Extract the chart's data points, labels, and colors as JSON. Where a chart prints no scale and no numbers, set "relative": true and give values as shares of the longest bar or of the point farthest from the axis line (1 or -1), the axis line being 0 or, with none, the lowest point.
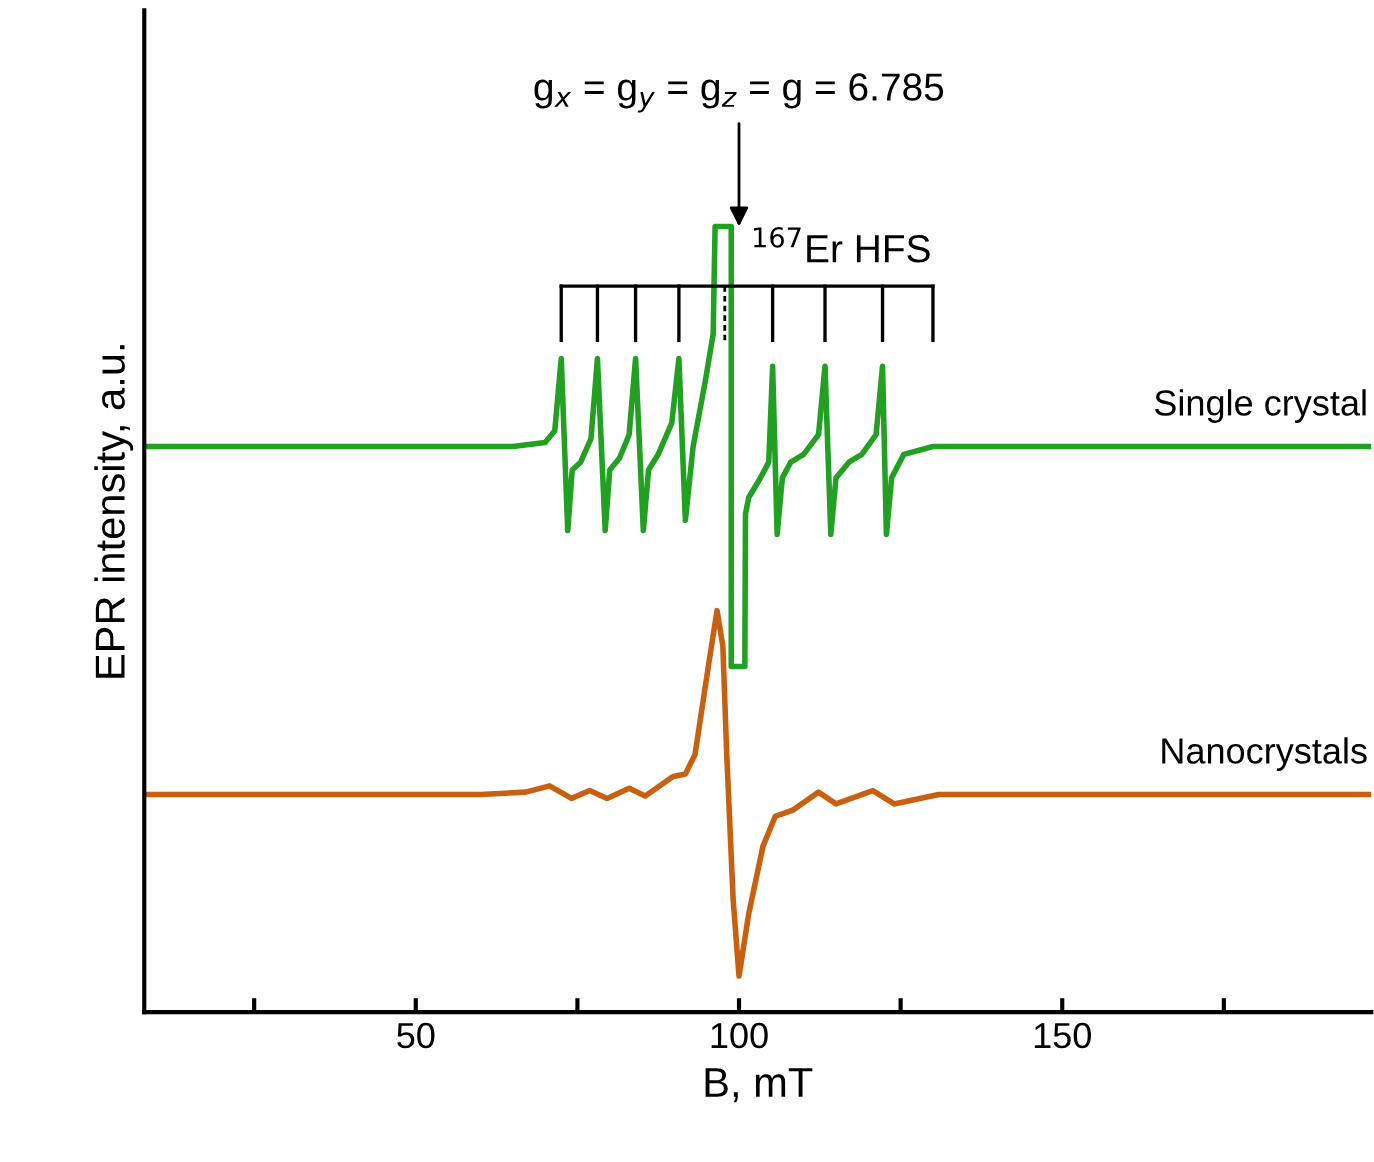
{
  "chart_data": {
    "type": "line",
    "relative": true,
    "xlabel": "B, mT",
    "ylabel": "EPR intensity, a.u.",
    "xlim": [
      8,
      197.8
    ],
    "xticks": [
      {
        "value": 25,
        "label": null
      },
      50,
      {
        "value": 75,
        "label": null
      },
      100,
      {
        "value": 125,
        "label": null
      },
      150,
      {
        "value": 175,
        "label": null
      }
    ],
    "grid": false,
    "marker": "none",
    "line_style": "solid",
    "tick_labels": "x",
    "annotations": [
      {
        "text": "g$_{x}$ = g$_{y}$ = g$_{z}$ = g = 6.785",
        "x": 100,
        "y": 1.0
      },
      "$^{167}$Er HFS"
    ],
    "series": [
      {
        "name": "Single crystal",
        "color": "#22a022",
        "x": [
          8,
          65,
          70,
          71.5,
          72.5,
          73.5,
          74.2,
          75.5,
          77.1,
          78.1,
          79.3,
          80.0,
          81.5,
          83.0,
          84.0,
          85.2,
          86.0,
          87.5,
          89.6,
          90.7,
          91.7,
          92.9,
          94.8,
          96.0,
          96.3,
          98.8,
          98.8,
          100.9,
          101.0,
          101.5,
          103.1,
          104.6,
          105.2,
          105.9,
          106.7,
          108.0,
          110.0,
          112.3,
          113.3,
          114.2,
          115.0,
          117.0,
          119.0,
          121.2,
          122.2,
          122.8,
          123.6,
          125.5,
          130.0,
          197.8
        ],
        "values": [
          0.72,
          0.72,
          0.725,
          0.74,
          0.832,
          0.613,
          0.69,
          0.7,
          0.73,
          0.832,
          0.613,
          0.69,
          0.705,
          0.735,
          0.832,
          0.613,
          0.69,
          0.71,
          0.75,
          0.832,
          0.626,
          0.72,
          0.804,
          0.863,
          1.0,
          1.0,
          0.44,
          0.44,
          0.634,
          0.655,
          0.677,
          0.7,
          0.822,
          0.608,
          0.68,
          0.7,
          0.71,
          0.735,
          0.822,
          0.608,
          0.68,
          0.7,
          0.71,
          0.735,
          0.822,
          0.608,
          0.68,
          0.71,
          0.72,
          0.72
        ]
      },
      {
        "name": "Nanocrystals",
        "color": "#c8600f",
        "x": [
          8,
          60,
          67,
          70.7,
          74.1,
          76.9,
          79.6,
          83.0,
          85.5,
          89.8,
          91.7,
          93.2,
          95.4,
          96.6,
          97.5,
          98.1,
          99.1,
          100.0,
          101.5,
          103.7,
          105.6,
          108.3,
          112.3,
          115.0,
          120.7,
          124.0,
          130.9,
          197.8
        ],
        "values": [
          0.277,
          0.277,
          0.28,
          0.288,
          0.272,
          0.282,
          0.272,
          0.285,
          0.275,
          0.3,
          0.303,
          0.328,
          0.448,
          0.511,
          0.466,
          0.328,
          0.142,
          0.046,
          0.125,
          0.211,
          0.249,
          0.257,
          0.28,
          0.265,
          0.282,
          0.265,
          0.277,
          0.277
        ]
      }
    ]
  }
}
